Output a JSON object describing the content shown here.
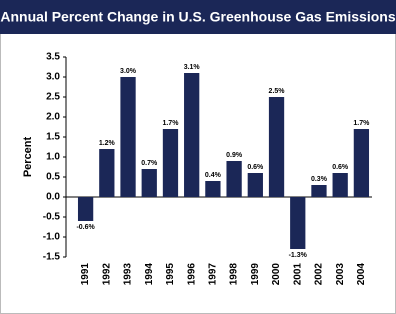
{
  "chart_data": {
    "type": "bar",
    "title": "Annual Percent Change in U.S. Greenhouse Gas Emissions",
    "y_label": "Percent",
    "categories": [
      "1991",
      "1992",
      "1993",
      "1994",
      "1995",
      "1996",
      "1997",
      "1998",
      "1999",
      "2000",
      "2001",
      "2002",
      "2003",
      "2004"
    ],
    "values": [
      -0.6,
      1.2,
      3.0,
      0.7,
      1.7,
      3.1,
      0.4,
      0.9,
      0.6,
      2.5,
      -1.3,
      0.3,
      0.6,
      1.7
    ],
    "value_labels": [
      "-0.6%",
      "1.2%",
      "3.0%",
      "0.7%",
      "1.7%",
      "3.1%",
      "0.4%",
      "0.9%",
      "0.6%",
      "2.5%",
      "-1.3%",
      "0.3%",
      "0.6%",
      "1.7%"
    ],
    "color": "#1b2757",
    "ylim": [
      -1.5,
      3.5
    ],
    "yticks": [
      {
        "value": -1.5,
        "label": "-1.5"
      },
      {
        "value": -1,
        "label": "-1.0"
      },
      -0.5,
      {
        "value": 0,
        "label": "0.0"
      },
      0.5,
      {
        "value": 1,
        "label": "1.0"
      },
      1.5,
      {
        "value": 2,
        "label": "2.0"
      },
      2.5,
      {
        "value": 3,
        "label": "3.0"
      },
      3.5
    ],
    "grid": false
  }
}
